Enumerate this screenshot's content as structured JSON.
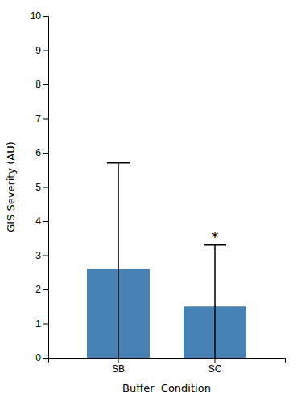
{
  "chart_data": {
    "type": "bar",
    "categories": [
      "SB",
      "SC"
    ],
    "values": [
      2.6,
      1.5
    ],
    "errors": [
      3.1,
      1.8
    ],
    "xlabel": "Buffer  Condition",
    "ylabel": "GIS Severity (AU)",
    "ylim": [
      0,
      10
    ],
    "yticks": [
      0,
      1,
      2,
      3,
      4,
      5,
      6,
      7,
      8,
      9,
      10
    ],
    "grid": false,
    "annotations": [
      {
        "text": "*",
        "x": "SC"
      }
    ]
  }
}
